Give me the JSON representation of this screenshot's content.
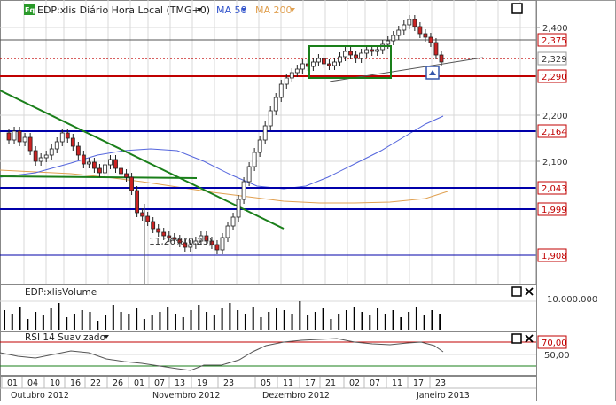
{
  "header": {
    "eq_badge": "Eq",
    "symbol_title": "EDP:xlis Diário Hora Local (TMG+0)",
    "ma50_label": "MA 50",
    "ma200_label": "MA 200"
  },
  "price_panel": {
    "axis_ticks": [
      "2,400",
      "2,200",
      "2,100"
    ],
    "level_tags": [
      {
        "label": "2,375",
        "color": "#c00000"
      },
      {
        "label": "2,329",
        "color": "#333333"
      },
      {
        "label": "2,290",
        "color": "#c00000"
      },
      {
        "label": "2,164",
        "color": "#c00000"
      },
      {
        "label": "2,043",
        "color": "#c00000"
      },
      {
        "label": "1,999",
        "color": "#c00000"
      },
      {
        "label": "1,908",
        "color": "#c00000"
      }
    ],
    "annotation": "11,26%(0,23)"
  },
  "volume_panel": {
    "title": "EDP:xlisVolume",
    "axis_label": "10.000.000"
  },
  "rsi_panel": {
    "title": "RSI 14 Suavizado",
    "level_70": "70,00",
    "level_50": "50,00"
  },
  "time_axis": {
    "days": [
      "01",
      "04",
      "10",
      "16",
      "22",
      "26",
      "01",
      "07",
      "13",
      "19",
      "23",
      "05",
      "11",
      "17",
      "21",
      "02",
      "07",
      "11",
      "17",
      "23"
    ],
    "months": [
      "Outubro 2012",
      "Novembro 2012",
      "Dezembro 2012",
      "Janeiro 2013"
    ]
  },
  "colors": {
    "up_candle": "#ffffff",
    "down_candle": "#cc2222",
    "trend_green": "#1a7f1a",
    "support_blue": "#0000aa",
    "resistance_red": "#c00000",
    "ma50": "#5566dd",
    "ma200": "#e0a050"
  },
  "icons": [
    "maximize-icon",
    "close-icon",
    "dropdown-icon",
    "alert-icon"
  ]
}
